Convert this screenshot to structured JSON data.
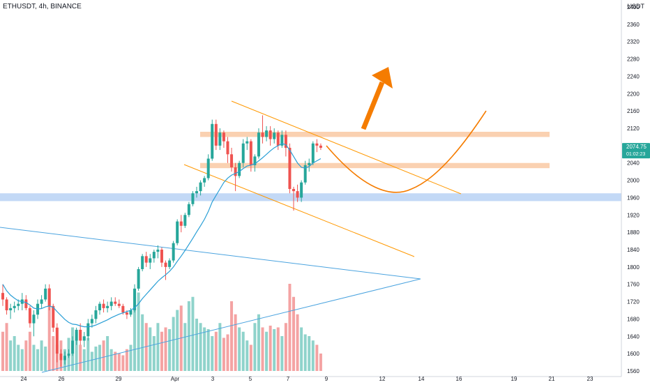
{
  "header": {
    "symbol": "ETHUSDT, 4h, BINANCE",
    "currency": "USDT"
  },
  "price_tag": {
    "price": "2074.75",
    "countdown": "01:02:23"
  },
  "colors": {
    "up": "#26a69a",
    "down": "#ef5350",
    "vol_up": "#8fd3cb",
    "vol_down": "#f4a3a3",
    "ma": "#2a9fd6",
    "channel": "#ff9800",
    "projection": "#f57c00",
    "resistance_zone": "#f9c9a3",
    "support_zone": "#bcd5f5",
    "triangle": "#4aa3df"
  },
  "chart_data": {
    "type": "candlestick",
    "title": "",
    "ylim": [
      1560,
      2400
    ],
    "y_ticks": [
      1560,
      1600,
      1640,
      1680,
      1720,
      1760,
      1800,
      1840,
      1880,
      1920,
      1960,
      2000,
      2040,
      2080,
      2120,
      2160,
      2200,
      2240,
      2280,
      2320,
      2360,
      2400
    ],
    "x_ticks": [
      "24",
      "26",
      "29",
      "Apr",
      "3",
      "5",
      "7",
      "9",
      "12",
      "14",
      "16",
      "19",
      "21",
      "23"
    ],
    "grid": false,
    "candles_ohlc": [
      [
        1740,
        1760,
        1710,
        1725
      ],
      [
        1725,
        1730,
        1690,
        1700
      ],
      [
        1700,
        1715,
        1680,
        1705
      ],
      [
        1705,
        1720,
        1695,
        1710
      ],
      [
        1710,
        1725,
        1700,
        1715
      ],
      [
        1715,
        1740,
        1700,
        1725
      ],
      [
        1725,
        1735,
        1700,
        1705
      ],
      [
        1705,
        1710,
        1660,
        1670
      ],
      [
        1670,
        1700,
        1640,
        1690
      ],
      [
        1690,
        1725,
        1680,
        1715
      ],
      [
        1715,
        1735,
        1705,
        1725
      ],
      [
        1725,
        1760,
        1720,
        1750
      ],
      [
        1750,
        1760,
        1700,
        1710
      ],
      [
        1710,
        1715,
        1650,
        1660
      ],
      [
        1660,
        1670,
        1580,
        1600
      ],
      [
        1600,
        1610,
        1570,
        1585
      ],
      [
        1585,
        1605,
        1575,
        1595
      ],
      [
        1595,
        1610,
        1590,
        1600
      ],
      [
        1600,
        1640,
        1595,
        1630
      ],
      [
        1630,
        1660,
        1620,
        1655
      ],
      [
        1655,
        1670,
        1620,
        1630
      ],
      [
        1630,
        1650,
        1615,
        1640
      ],
      [
        1640,
        1680,
        1630,
        1670
      ],
      [
        1670,
        1690,
        1660,
        1680
      ],
      [
        1680,
        1710,
        1670,
        1700
      ],
      [
        1700,
        1720,
        1690,
        1715
      ],
      [
        1715,
        1725,
        1695,
        1705
      ],
      [
        1705,
        1720,
        1695,
        1710
      ],
      [
        1710,
        1730,
        1700,
        1720
      ],
      [
        1720,
        1730,
        1710,
        1715
      ],
      [
        1715,
        1725,
        1705,
        1710
      ],
      [
        1710,
        1715,
        1690,
        1695
      ],
      [
        1695,
        1700,
        1680,
        1690
      ],
      [
        1690,
        1705,
        1685,
        1700
      ],
      [
        1700,
        1760,
        1695,
        1750
      ],
      [
        1750,
        1800,
        1745,
        1795
      ],
      [
        1795,
        1830,
        1790,
        1825
      ],
      [
        1825,
        1835,
        1800,
        1810
      ],
      [
        1810,
        1830,
        1795,
        1820
      ],
      [
        1820,
        1840,
        1810,
        1835
      ],
      [
        1835,
        1850,
        1820,
        1840
      ],
      [
        1840,
        1845,
        1800,
        1810
      ],
      [
        1810,
        1815,
        1770,
        1800
      ],
      [
        1800,
        1820,
        1795,
        1815
      ],
      [
        1815,
        1860,
        1810,
        1855
      ],
      [
        1855,
        1910,
        1850,
        1905
      ],
      [
        1905,
        1920,
        1880,
        1895
      ],
      [
        1895,
        1925,
        1890,
        1920
      ],
      [
        1920,
        1950,
        1915,
        1945
      ],
      [
        1945,
        1975,
        1940,
        1970
      ],
      [
        1970,
        1985,
        1960,
        1975
      ],
      [
        1975,
        2000,
        1965,
        1995
      ],
      [
        1995,
        2010,
        1985,
        2005
      ],
      [
        2005,
        2060,
        2000,
        2050
      ],
      [
        2050,
        2140,
        2045,
        2130
      ],
      [
        2130,
        2140,
        2070,
        2080
      ],
      [
        2080,
        2120,
        2070,
        2110
      ],
      [
        2110,
        2115,
        2075,
        2090
      ],
      [
        2090,
        2100,
        2040,
        2060
      ],
      [
        2060,
        2075,
        2020,
        2030
      ],
      [
        2030,
        2040,
        1975,
        2010
      ],
      [
        2010,
        2045,
        2005,
        2040
      ],
      [
        2040,
        2095,
        2030,
        2085
      ],
      [
        2085,
        2100,
        2070,
        2090
      ],
      [
        2090,
        2095,
        2020,
        2035
      ],
      [
        2035,
        2060,
        2020,
        2055
      ],
      [
        2055,
        2120,
        2050,
        2110
      ],
      [
        2110,
        2150,
        2085,
        2100
      ],
      [
        2100,
        2125,
        2090,
        2115
      ],
      [
        2115,
        2125,
        2080,
        2095
      ],
      [
        2095,
        2120,
        2085,
        2110
      ],
      [
        2110,
        2115,
        2070,
        2080
      ],
      [
        2080,
        2115,
        2075,
        2105
      ],
      [
        2105,
        2115,
        2055,
        2075
      ],
      [
        2075,
        2085,
        1970,
        1980
      ],
      [
        1980,
        1985,
        1930,
        1975
      ],
      [
        1975,
        1990,
        1950,
        1960
      ],
      [
        1960,
        2000,
        1950,
        1995
      ],
      [
        1995,
        2045,
        1990,
        2035
      ],
      [
        2035,
        2050,
        2020,
        2040
      ],
      [
        2040,
        2090,
        2035,
        2085
      ],
      [
        2085,
        2095,
        2065,
        2080
      ],
      [
        2080,
        2085,
        2070,
        2075
      ]
    ],
    "moving_average": [
      1760,
      1745,
      1735,
      1728,
      1722,
      1720,
      1718,
      1712,
      1705,
      1703,
      1704,
      1708,
      1710,
      1707,
      1697,
      1688,
      1679,
      1672,
      1668,
      1667,
      1664,
      1662,
      1662,
      1663,
      1666,
      1670,
      1674,
      1678,
      1683,
      1687,
      1691,
      1694,
      1697,
      1700,
      1706,
      1715,
      1727,
      1737,
      1747,
      1757,
      1767,
      1775,
      1782,
      1790,
      1800,
      1813,
      1825,
      1838,
      1852,
      1866,
      1881,
      1895,
      1910,
      1928,
      1950,
      1965,
      1980,
      1995,
      2005,
      2012,
      2016,
      2020,
      2027,
      2033,
      2035,
      2038,
      2045,
      2052,
      2060,
      2068,
      2075,
      2080,
      2085,
      2082,
      2070,
      2055,
      2040,
      2030,
      2028,
      2032,
      2040,
      2045,
      2050
    ],
    "volume": [
      0.45,
      0.55,
      0.35,
      0.4,
      0.3,
      0.25,
      0.35,
      0.45,
      0.3,
      0.25,
      0.35,
      0.28,
      0.95,
      0.4,
      0.3,
      0.35,
      0.25,
      0.38,
      0.5,
      0.45,
      0.3,
      0.25,
      0.38,
      0.22,
      0.28,
      0.3,
      0.35,
      0.4,
      0.25,
      0.22,
      0.2,
      0.18,
      0.25,
      0.3,
      0.85,
      0.9,
      0.65,
      0.55,
      0.5,
      0.4,
      0.55,
      0.45,
      0.5,
      0.48,
      0.62,
      0.7,
      0.75,
      0.55,
      0.8,
      0.85,
      0.6,
      0.55,
      0.5,
      0.48,
      0.4,
      0.45,
      0.55,
      0.38,
      0.42,
      0.8,
      0.65,
      0.5,
      0.45,
      0.35,
      0.3,
      0.55,
      0.65,
      0.5,
      0.45,
      0.52,
      0.48,
      0.5,
      0.4,
      0.55,
      1.0,
      0.85,
      0.65,
      0.5,
      0.42,
      0.4,
      0.35,
      0.3,
      0.2
    ]
  }
}
